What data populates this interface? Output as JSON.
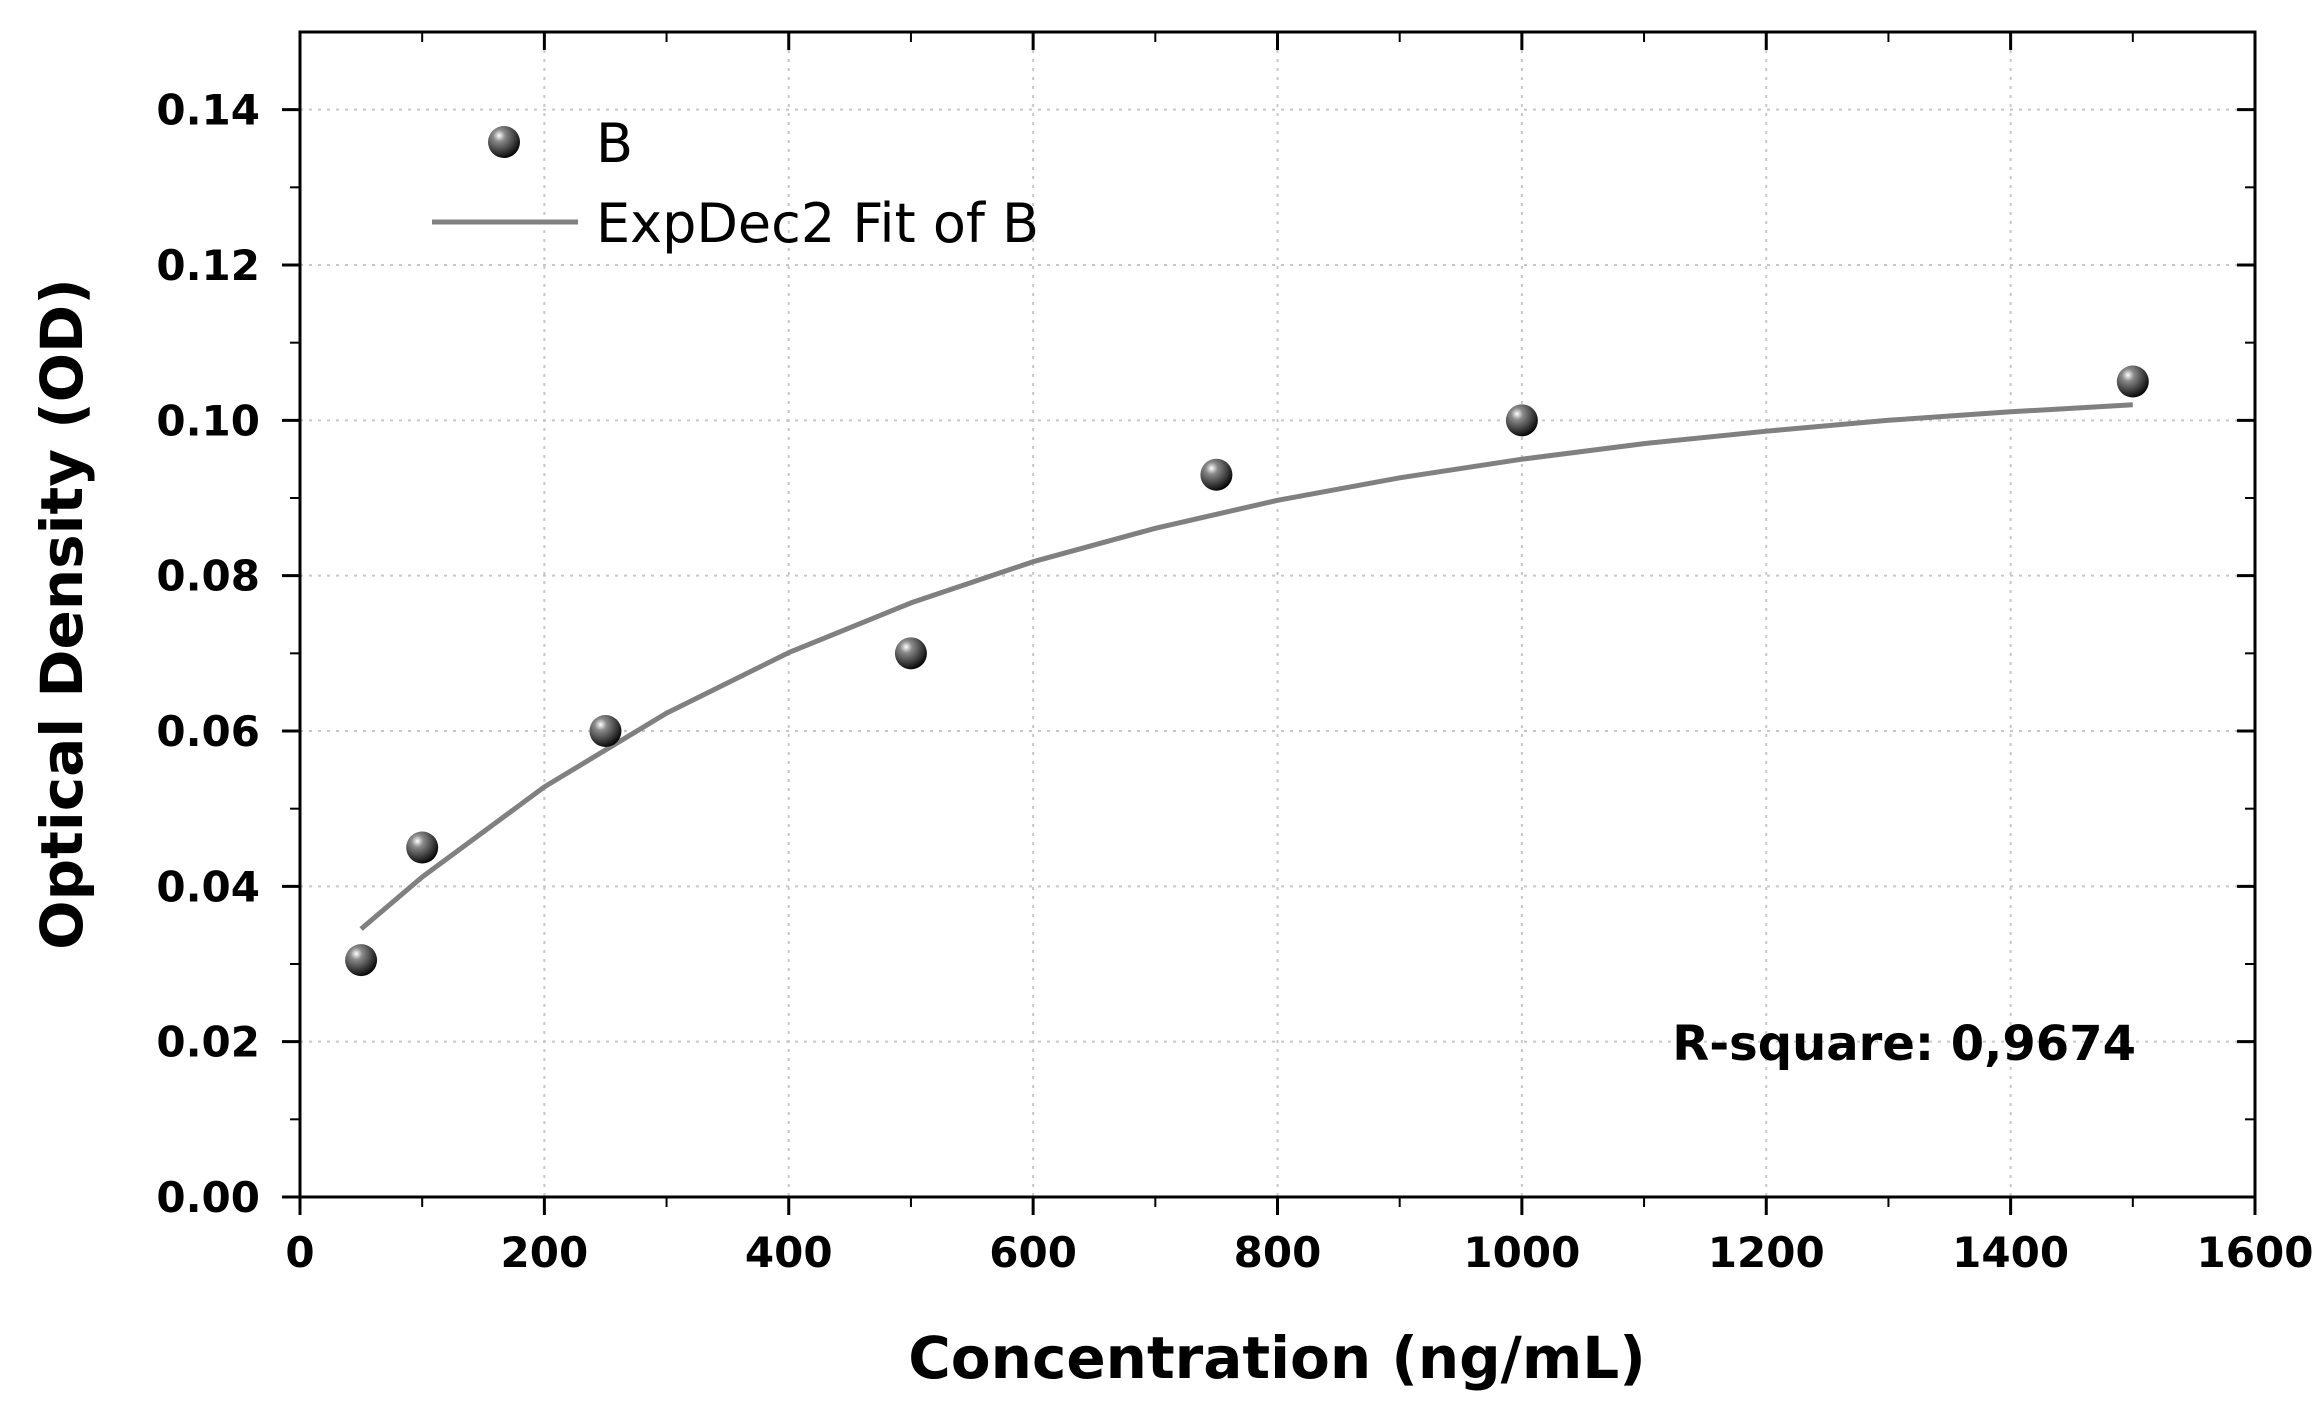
{
  "chart_data": {
    "type": "scatter",
    "xlabel": "Concentration (ng/mL)",
    "ylabel": "Optical Density (OD)",
    "xlim": [
      0,
      1600
    ],
    "ylim": [
      0,
      0.15
    ],
    "x_ticks": [
      "0",
      "200",
      "400",
      "600",
      "800",
      "1000",
      "1200",
      "1400",
      "1600"
    ],
    "y_ticks": [
      "0.00",
      "0.02",
      "0.04",
      "0.06",
      "0.08",
      "0.10",
      "0.12",
      "0.14"
    ],
    "x_tick_values": [
      0,
      200,
      400,
      600,
      800,
      1000,
      1200,
      1400,
      1600
    ],
    "y_tick_values": [
      0,
      0.02,
      0.04,
      0.06,
      0.08,
      0.1,
      0.12,
      0.14
    ],
    "grid": true,
    "legend_position": "top-left",
    "series": [
      {
        "name": "B",
        "kind": "scatter",
        "x": [
          50,
          100,
          250,
          500,
          750,
          1000,
          1500
        ],
        "y": [
          0.0305,
          0.045,
          0.06,
          0.07,
          0.093,
          0.1,
          0.105
        ]
      },
      {
        "name": "ExpDec2 Fit of B",
        "kind": "line",
        "x": [
          50,
          100,
          200,
          300,
          400,
          500,
          600,
          700,
          800,
          900,
          1000,
          1100,
          1200,
          1300,
          1400,
          1500
        ],
        "y": [
          0.0345,
          0.0412,
          0.0528,
          0.0623,
          0.0701,
          0.0765,
          0.0818,
          0.0861,
          0.0897,
          0.0926,
          0.095,
          0.097,
          0.0986,
          0.1,
          0.1011,
          0.102
        ]
      }
    ],
    "annotations": [
      {
        "text": "R-square: 0,9674"
      }
    ],
    "colors": {
      "fit_line": "#808080",
      "marker": "#1a1a1a",
      "grid": "#c8c8c8",
      "axis": "#000000"
    }
  }
}
